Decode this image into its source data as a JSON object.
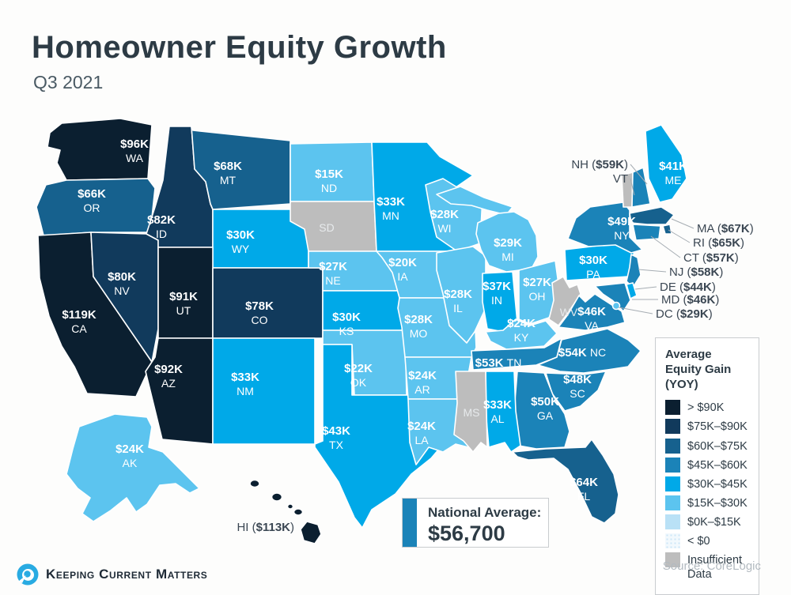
{
  "header": {
    "title": "Homeowner Equity Growth",
    "subtitle": "Q3 2021"
  },
  "legend": {
    "title": "Average Equity Gain (YOY)",
    "items": [
      {
        "key": "gt90",
        "label": "> $90K",
        "color": "#0b1f30"
      },
      {
        "key": "75to90",
        "label": "$75K–$90K",
        "color": "#113a5c"
      },
      {
        "key": "60to75",
        "label": "$60K–$75K",
        "color": "#16618e"
      },
      {
        "key": "45to60",
        "label": "$45K–$60K",
        "color": "#1b83b8"
      },
      {
        "key": "30to45",
        "label": "$30K–$45K",
        "color": "#00a9e8"
      },
      {
        "key": "15to30",
        "label": "$15K–$30K",
        "color": "#5cc4ef"
      },
      {
        "key": "0to15",
        "label": "$0K–$15K",
        "color": "#b9e1f6"
      },
      {
        "key": "lt0",
        "label": "< $0",
        "color": "#eef6fc",
        "pattern": "dots"
      },
      {
        "key": "na",
        "label": "Insufficient Data",
        "color": "#bdbdbd"
      }
    ]
  },
  "national_average": {
    "label": "National Average:",
    "value": "$56,700"
  },
  "map": {
    "states": {
      "WA": {
        "value": "$96K",
        "category": "gt90"
      },
      "OR": {
        "value": "$66K",
        "category": "60to75"
      },
      "CA": {
        "value": "$119K",
        "category": "gt90"
      },
      "NV": {
        "value": "$80K",
        "category": "75to90"
      },
      "ID": {
        "value": "$82K",
        "category": "75to90"
      },
      "MT": {
        "value": "$68K",
        "category": "60to75"
      },
      "WY": {
        "value": "$30K",
        "category": "30to45"
      },
      "UT": {
        "value": "$91K",
        "category": "gt90"
      },
      "CO": {
        "value": "$78K",
        "category": "75to90"
      },
      "AZ": {
        "value": "$92K",
        "category": "gt90"
      },
      "NM": {
        "value": "$33K",
        "category": "30to45"
      },
      "AK": {
        "value": "$24K",
        "category": "15to30"
      },
      "HI": {
        "value": "$113K",
        "category": "gt90"
      },
      "ND": {
        "value": "$15K",
        "category": "15to30"
      },
      "SD": {
        "value": null,
        "category": "na"
      },
      "NE": {
        "value": "$27K",
        "category": "15to30"
      },
      "KS": {
        "value": "$30K",
        "category": "30to45"
      },
      "OK": {
        "value": "$22K",
        "category": "15to30"
      },
      "TX": {
        "value": "$43K",
        "category": "30to45"
      },
      "MN": {
        "value": "$33K",
        "category": "30to45"
      },
      "IA": {
        "value": "$20K",
        "category": "15to30"
      },
      "MO": {
        "value": "$28K",
        "category": "15to30"
      },
      "AR": {
        "value": "$24K",
        "category": "15to30"
      },
      "LA": {
        "value": "$24K",
        "category": "15to30"
      },
      "WI": {
        "value": "$28K",
        "category": "15to30"
      },
      "IL": {
        "value": "$28K",
        "category": "15to30"
      },
      "MI": {
        "value": "$29K",
        "category": "15to30"
      },
      "IN": {
        "value": "$37K",
        "category": "30to45"
      },
      "OH": {
        "value": "$27K",
        "category": "15to30"
      },
      "KY": {
        "value": "$24K",
        "category": "15to30"
      },
      "TN": {
        "value": "$53K",
        "category": "45to60"
      },
      "MS": {
        "value": null,
        "category": "na"
      },
      "AL": {
        "value": "$33K",
        "category": "30to45"
      },
      "GA": {
        "value": "$50K",
        "category": "45to60"
      },
      "SC": {
        "value": "$48K",
        "category": "45to60"
      },
      "NC": {
        "value": "$54K",
        "category": "45to60"
      },
      "VA": {
        "value": "$46K",
        "category": "45to60"
      },
      "WV": {
        "value": null,
        "category": "na"
      },
      "FL": {
        "value": "$64K",
        "category": "60to75"
      },
      "PA": {
        "value": "$30K",
        "category": "30to45"
      },
      "NY": {
        "value": "$49K",
        "category": "45to60"
      },
      "ME": {
        "value": "$41K",
        "category": "30to45"
      },
      "VT": {
        "value": null,
        "category": "na"
      },
      "NH": {
        "value": "$59K",
        "category": "45to60"
      },
      "MA": {
        "value": "$67K",
        "category": "60to75"
      },
      "RI": {
        "value": "$65K",
        "category": "60to75"
      },
      "CT": {
        "value": "$57K",
        "category": "45to60"
      },
      "NJ": {
        "value": "$58K",
        "category": "45to60"
      },
      "DE": {
        "value": "$44K",
        "category": "30to45"
      },
      "MD": {
        "value": "$46K",
        "category": "45to60"
      },
      "DC": {
        "value": "$29K",
        "category": "15to30"
      }
    },
    "callouts": [
      {
        "abbr": "NH",
        "value": "$59K"
      },
      {
        "abbr": "VT",
        "value": null
      },
      {
        "abbr": "MA",
        "value": "$67K"
      },
      {
        "abbr": "RI",
        "value": "$65K"
      },
      {
        "abbr": "CT",
        "value": "$57K"
      },
      {
        "abbr": "NJ",
        "value": "$58K"
      },
      {
        "abbr": "DE",
        "value": "$44K"
      },
      {
        "abbr": "MD",
        "value": "$46K"
      },
      {
        "abbr": "DC",
        "value": "$29K"
      },
      {
        "abbr": "HI",
        "value": "$113K"
      }
    ]
  },
  "footer": {
    "brand": "Keeping Current Matters",
    "source": "Source: CoreLogic"
  }
}
